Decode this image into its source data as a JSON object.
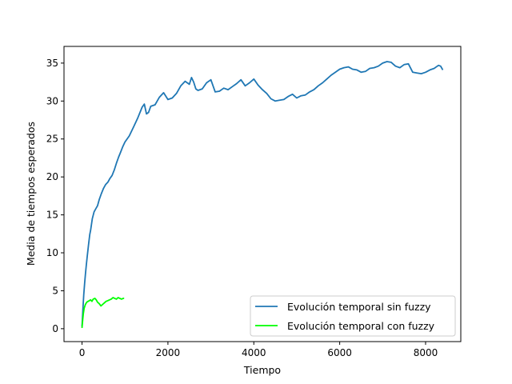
{
  "chart_data": {
    "type": "line",
    "title": "",
    "xlabel": "Tiempo",
    "ylabel": "Media de tiempos esperados",
    "xlim": [
      -420,
      8820
    ],
    "ylim": [
      -1.7,
      37.2
    ],
    "x_ticks": [
      0,
      2000,
      4000,
      6000,
      8000
    ],
    "y_ticks": [
      0,
      5,
      10,
      15,
      20,
      25,
      30,
      35
    ],
    "legend_position": "lower-right",
    "grid": false,
    "series": [
      {
        "name": "Evolución temporal sin fuzzy",
        "color": "#1f77b4",
        "points": [
          [
            0,
            0.3
          ],
          [
            20,
            2.5
          ],
          [
            40,
            4.5
          ],
          [
            60,
            6.0
          ],
          [
            80,
            7.2
          ],
          [
            100,
            8.4
          ],
          [
            120,
            9.5
          ],
          [
            150,
            11.0
          ],
          [
            180,
            12.4
          ],
          [
            200,
            13.0
          ],
          [
            240,
            14.5
          ],
          [
            280,
            15.4
          ],
          [
            320,
            15.8
          ],
          [
            360,
            16.2
          ],
          [
            400,
            17.0
          ],
          [
            450,
            17.8
          ],
          [
            500,
            18.5
          ],
          [
            550,
            19.0
          ],
          [
            600,
            19.3
          ],
          [
            650,
            19.8
          ],
          [
            700,
            20.2
          ],
          [
            750,
            20.9
          ],
          [
            800,
            21.8
          ],
          [
            850,
            22.6
          ],
          [
            900,
            23.3
          ],
          [
            950,
            24.0
          ],
          [
            1000,
            24.6
          ],
          [
            1100,
            25.4
          ],
          [
            1200,
            26.6
          ],
          [
            1300,
            27.8
          ],
          [
            1400,
            29.2
          ],
          [
            1450,
            29.6
          ],
          [
            1500,
            28.3
          ],
          [
            1550,
            28.5
          ],
          [
            1600,
            29.3
          ],
          [
            1700,
            29.5
          ],
          [
            1800,
            30.5
          ],
          [
            1900,
            31.1
          ],
          [
            2000,
            30.2
          ],
          [
            2100,
            30.4
          ],
          [
            2200,
            31.0
          ],
          [
            2300,
            32.0
          ],
          [
            2400,
            32.6
          ],
          [
            2500,
            32.2
          ],
          [
            2550,
            33.1
          ],
          [
            2600,
            32.5
          ],
          [
            2650,
            31.6
          ],
          [
            2700,
            31.4
          ],
          [
            2800,
            31.6
          ],
          [
            2900,
            32.4
          ],
          [
            3000,
            32.8
          ],
          [
            3100,
            31.2
          ],
          [
            3200,
            31.3
          ],
          [
            3300,
            31.7
          ],
          [
            3400,
            31.5
          ],
          [
            3500,
            31.9
          ],
          [
            3600,
            32.3
          ],
          [
            3700,
            32.8
          ],
          [
            3800,
            32.0
          ],
          [
            3900,
            32.4
          ],
          [
            4000,
            32.9
          ],
          [
            4100,
            32.1
          ],
          [
            4200,
            31.5
          ],
          [
            4300,
            31.0
          ],
          [
            4400,
            30.3
          ],
          [
            4500,
            30.0
          ],
          [
            4600,
            30.1
          ],
          [
            4700,
            30.2
          ],
          [
            4800,
            30.6
          ],
          [
            4900,
            30.9
          ],
          [
            5000,
            30.4
          ],
          [
            5100,
            30.7
          ],
          [
            5200,
            30.8
          ],
          [
            5300,
            31.2
          ],
          [
            5400,
            31.5
          ],
          [
            5500,
            32.0
          ],
          [
            5600,
            32.4
          ],
          [
            5700,
            32.9
          ],
          [
            5800,
            33.4
          ],
          [
            5900,
            33.8
          ],
          [
            6000,
            34.2
          ],
          [
            6100,
            34.4
          ],
          [
            6200,
            34.5
          ],
          [
            6300,
            34.2
          ],
          [
            6400,
            34.1
          ],
          [
            6500,
            33.8
          ],
          [
            6600,
            33.9
          ],
          [
            6700,
            34.3
          ],
          [
            6800,
            34.4
          ],
          [
            6900,
            34.6
          ],
          [
            7000,
            35.0
          ],
          [
            7100,
            35.2
          ],
          [
            7200,
            35.1
          ],
          [
            7300,
            34.6
          ],
          [
            7400,
            34.4
          ],
          [
            7500,
            34.8
          ],
          [
            7600,
            34.9
          ],
          [
            7700,
            33.8
          ],
          [
            7800,
            33.7
          ],
          [
            7900,
            33.6
          ],
          [
            8000,
            33.8
          ],
          [
            8100,
            34.1
          ],
          [
            8200,
            34.3
          ],
          [
            8300,
            34.7
          ],
          [
            8350,
            34.6
          ],
          [
            8400,
            34.1
          ]
        ]
      },
      {
        "name": "Evolución temporal con fuzzy",
        "color": "#00ff00",
        "points": [
          [
            0,
            0.1
          ],
          [
            15,
            1.2
          ],
          [
            30,
            2.0
          ],
          [
            50,
            2.7
          ],
          [
            80,
            3.2
          ],
          [
            110,
            3.5
          ],
          [
            140,
            3.6
          ],
          [
            170,
            3.7
          ],
          [
            200,
            3.8
          ],
          [
            230,
            3.6
          ],
          [
            260,
            3.9
          ],
          [
            300,
            4.0
          ],
          [
            330,
            3.8
          ],
          [
            360,
            3.5
          ],
          [
            400,
            3.3
          ],
          [
            440,
            3.0
          ],
          [
            480,
            3.2
          ],
          [
            520,
            3.4
          ],
          [
            560,
            3.6
          ],
          [
            600,
            3.7
          ],
          [
            640,
            3.8
          ],
          [
            680,
            3.9
          ],
          [
            720,
            4.1
          ],
          [
            760,
            4.0
          ],
          [
            800,
            3.9
          ],
          [
            840,
            4.1
          ],
          [
            880,
            4.0
          ],
          [
            920,
            3.9
          ],
          [
            960,
            4.0
          ],
          [
            980,
            4.0
          ]
        ]
      }
    ]
  }
}
